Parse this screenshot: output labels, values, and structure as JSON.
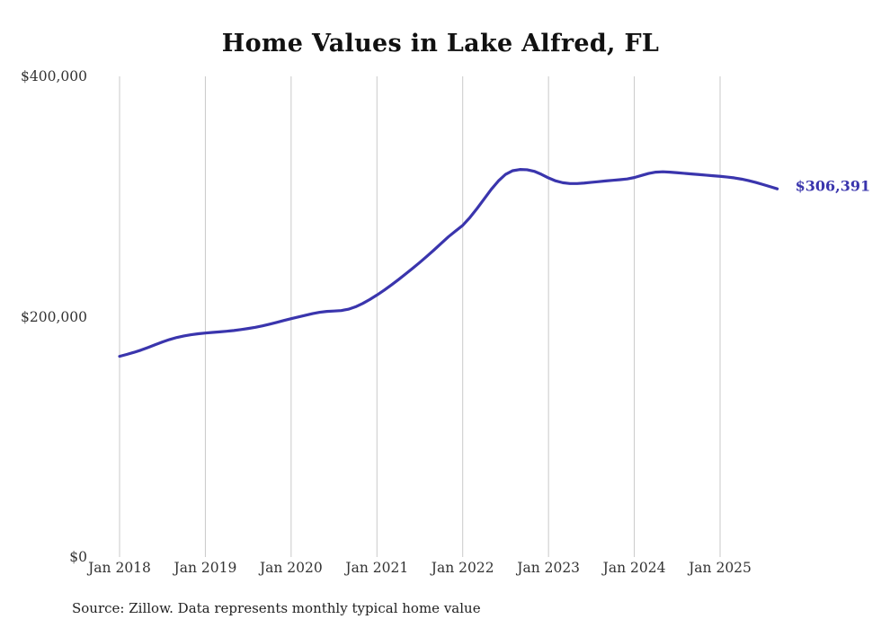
{
  "title": "Home Values in Lake Alfred, FL",
  "source_note": "Source: Zillow. Data represents monthly typical home value",
  "end_label": "$306,391",
  "colors": {
    "line": "#3a35ad",
    "end_label_text": "#3a35ad",
    "grid": "#c9c9c9",
    "tick_text": "#333333",
    "title_text": "#111111"
  },
  "chart_data": {
    "type": "line",
    "title": "Home Values in Lake Alfred, FL",
    "xlabel": "",
    "ylabel": "",
    "ylim": [
      0,
      400000
    ],
    "grid": "vertical-only",
    "legend": "none",
    "x_tick_labels": [
      "Jan 2018",
      "Jan 2019",
      "Jan 2020",
      "Jan 2021",
      "Jan 2022",
      "Jan 2023",
      "Jan 2024",
      "Jan 2025"
    ],
    "y_tick_labels": [
      "$0",
      "$200,000",
      "$400,000"
    ],
    "y_ticks": [
      0,
      200000,
      400000
    ],
    "months_per_tick": 12,
    "start_month": "2018-01",
    "end_month": "2025-09",
    "last_value": 306391,
    "series": [
      {
        "name": "Monthly typical home value",
        "values": [
          167000,
          168600,
          170300,
          172200,
          174400,
          176700,
          179000,
          181000,
          182700,
          184000,
          185000,
          185800,
          186400,
          186900,
          187400,
          187900,
          188500,
          189300,
          190200,
          191200,
          192400,
          193800,
          195300,
          196900,
          198400,
          199800,
          201200,
          202600,
          203700,
          204400,
          204700,
          205100,
          206200,
          208200,
          211000,
          214300,
          218000,
          222000,
          226300,
          230800,
          235500,
          240300,
          245200,
          250300,
          255600,
          261100,
          266500,
          271300,
          276000,
          282500,
          290000,
          298000,
          306000,
          313000,
          318500,
          321500,
          322500,
          322300,
          321000,
          318500,
          315500,
          313000,
          311500,
          310800,
          310800,
          311200,
          311800,
          312400,
          313000,
          313500,
          314000,
          314600,
          315800,
          317500,
          319200,
          320300,
          320600,
          320300,
          319800,
          319300,
          318800,
          318300,
          317800,
          317300,
          316800,
          316200,
          315500,
          314500,
          313200,
          311700,
          310000,
          308200,
          306391
        ]
      }
    ]
  }
}
